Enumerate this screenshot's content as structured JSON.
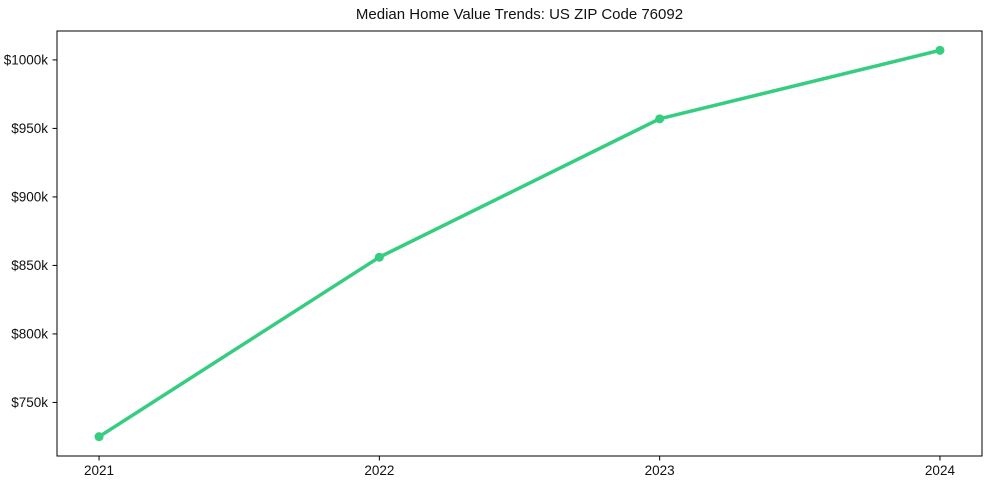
{
  "chart_data": {
    "type": "line",
    "title": "Median Home Value Trends: US ZIP Code 76092",
    "x": [
      "2021",
      "2022",
      "2023",
      "2024"
    ],
    "values": [
      725000,
      856000,
      957000,
      1007000
    ],
    "xlabel": "",
    "ylabel": "",
    "ytick_values": [
      750000,
      800000,
      850000,
      900000,
      950000,
      1000000
    ],
    "ytick_labels": [
      "$750k",
      "$800k",
      "$850k",
      "$900k",
      "$950k",
      "$1000k"
    ],
    "ylim": [
      710900,
      1021100
    ],
    "x_margin_frac": 0.05,
    "grid": false,
    "legend": "none",
    "line_color": "#35cd7f",
    "marker": "circle",
    "spine_color": "#000000",
    "background": "#ffffff"
  }
}
